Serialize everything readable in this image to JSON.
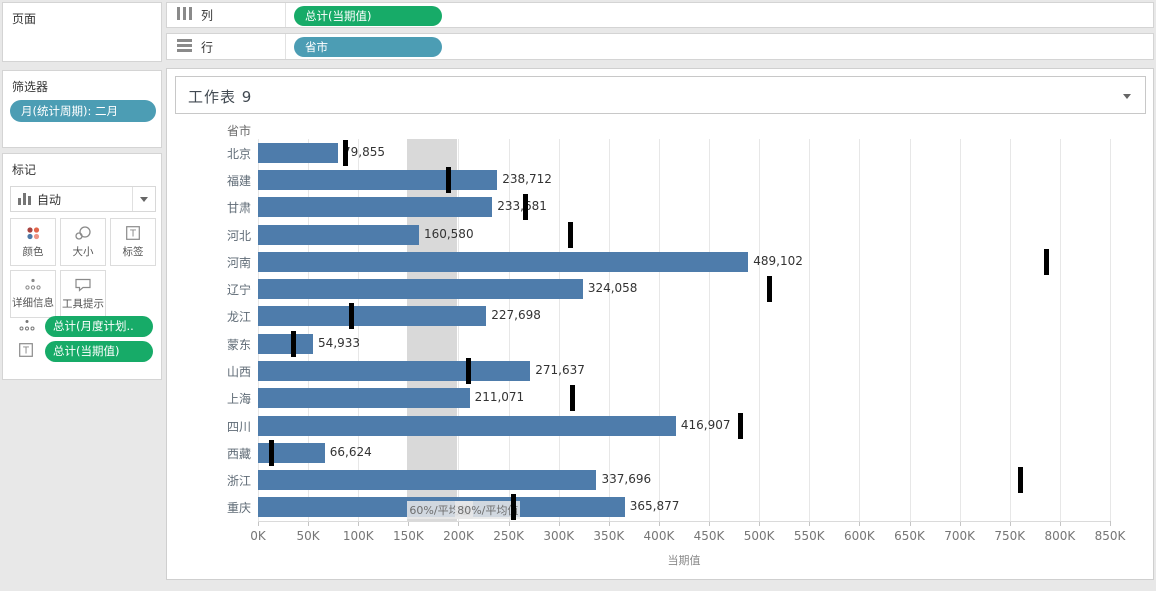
{
  "colors": {
    "measure_pill_green": "#17ab68",
    "dimension_pill_teal": "#4c9db4",
    "bar_blue": "#4e7cab",
    "reference_tick_black": "#000000",
    "reference_band_gray": "#d9d9d9",
    "background_gray": "#e8e8e8"
  },
  "pages_shelf": {
    "title": "页面"
  },
  "filters_shelf": {
    "title": "筛选器",
    "pills": [
      {
        "label": "月(统计周期): 二月"
      }
    ]
  },
  "marks_card": {
    "title": "标记",
    "mark_type": {
      "label": "自动",
      "icon": "bar-chart-icon"
    },
    "buttons": [
      {
        "label": "颜色",
        "icon": "color-dots-icon"
      },
      {
        "label": "大小",
        "icon": "size-circles-icon"
      },
      {
        "label": "标签",
        "icon": "text-label-icon"
      },
      {
        "label": "详细信息",
        "icon": "detail-dots-icon"
      },
      {
        "label": "工具提示",
        "icon": "tooltip-bubble-icon"
      }
    ],
    "pills": [
      {
        "label": "总计(月度计划..",
        "icon": "detail-dots-icon"
      },
      {
        "label": "总计(当期值)",
        "icon": "text-label-icon"
      }
    ]
  },
  "columns_shelf": {
    "label": "列",
    "icon": "columns-icon",
    "pill": "总计(当期值)"
  },
  "rows_shelf": {
    "label": "行",
    "icon": "rows-icon",
    "pill": "省市"
  },
  "sheet": {
    "title": "工作表 9",
    "menu_icon": "chevron-down-icon"
  },
  "chart_data": {
    "type": "bar",
    "title": "工作表 9",
    "row_header": "省市",
    "xlabel": "当期值",
    "xlim": [
      0,
      850000
    ],
    "x_tick_step": 50000,
    "x_tick_labels": [
      "0K",
      "50K",
      "100K",
      "150K",
      "200K",
      "250K",
      "300K",
      "350K",
      "400K",
      "450K",
      "500K",
      "550K",
      "600K",
      "650K",
      "700K",
      "750K",
      "800K",
      "850K"
    ],
    "grid": true,
    "categories": [
      "北京",
      "福建",
      "甘肃",
      "河北",
      "河南",
      "辽宁",
      "龙江",
      "蒙东",
      "山西",
      "上海",
      "四川",
      "西藏",
      "浙江",
      "重庆"
    ],
    "series": [
      {
        "name": "总计(当期值)",
        "mark": "bar",
        "values": [
          79855,
          238712,
          233681,
          160580,
          489102,
          324058,
          227698,
          54933,
          271637,
          211071,
          416907,
          66624,
          337696,
          365877
        ],
        "labels": [
          "79,855",
          "238,712",
          "233,681",
          "160,580",
          "489,102",
          "324,058",
          "227,698",
          "54,933",
          "271,637",
          "211,071",
          "416,907",
          "66,624",
          "337,696",
          "365,877"
        ]
      },
      {
        "name": "总计(月度计划值)",
        "mark": "gantt-tick",
        "estimated": true,
        "values": [
          87000,
          190000,
          267000,
          312000,
          787000,
          510000,
          93000,
          35000,
          210000,
          314000,
          481000,
          13000,
          761000,
          255000
        ]
      }
    ],
    "reference_band": {
      "from": 149076,
      "to": 198767,
      "from_label": "60%/平均值",
      "to_label": "80%/平均值"
    }
  }
}
